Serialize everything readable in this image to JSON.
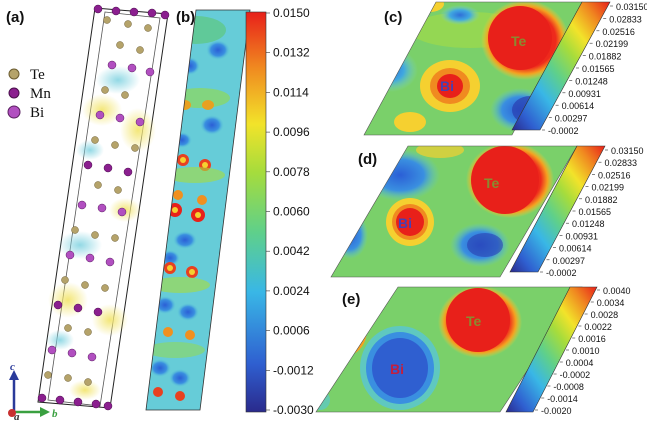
{
  "panels": {
    "a": "(a)",
    "b": "(b)",
    "c": "(c)",
    "d": "(d)",
    "e": "(e)"
  },
  "legend": [
    {
      "label": "Te",
      "color": "#b5a36a"
    },
    {
      "label": "Mn",
      "color": "#8b1f8f"
    },
    {
      "label": "Bi",
      "color": "#b14fc0"
    }
  ],
  "axes": {
    "c": "c",
    "b": "b",
    "a": "a"
  },
  "atoms": {
    "te": "Te",
    "bi": "Bi"
  },
  "colorbar_b": {
    "ticks": [
      "0.0150",
      "0.0132",
      "0.0114",
      "0.0096",
      "0.0078",
      "0.0060",
      "0.0042",
      "0.0024",
      "0.0006",
      "-0.0012",
      "-0.0030"
    ]
  },
  "colorbar_c": {
    "ticks": [
      "0.03150",
      "0.02833",
      "0.02516",
      "0.02199",
      "0.01882",
      "0.01565",
      "0.01248",
      "0.00931",
      "0.00614",
      "0.00297",
      "-0.0002"
    ]
  },
  "colorbar_d": {
    "ticks": [
      "0.03150",
      "0.02833",
      "0.02516",
      "0.02199",
      "0.01882",
      "0.01565",
      "0.01248",
      "0.00931",
      "0.00614",
      "0.00297",
      "-0.0002"
    ]
  },
  "colorbar_e": {
    "ticks": [
      "0.0040",
      "0.0034",
      "0.0028",
      "0.0022",
      "0.0016",
      "0.0010",
      "0.0004",
      "-0.0002",
      "-0.0008",
      "-0.0014",
      "-0.0020"
    ]
  }
}
